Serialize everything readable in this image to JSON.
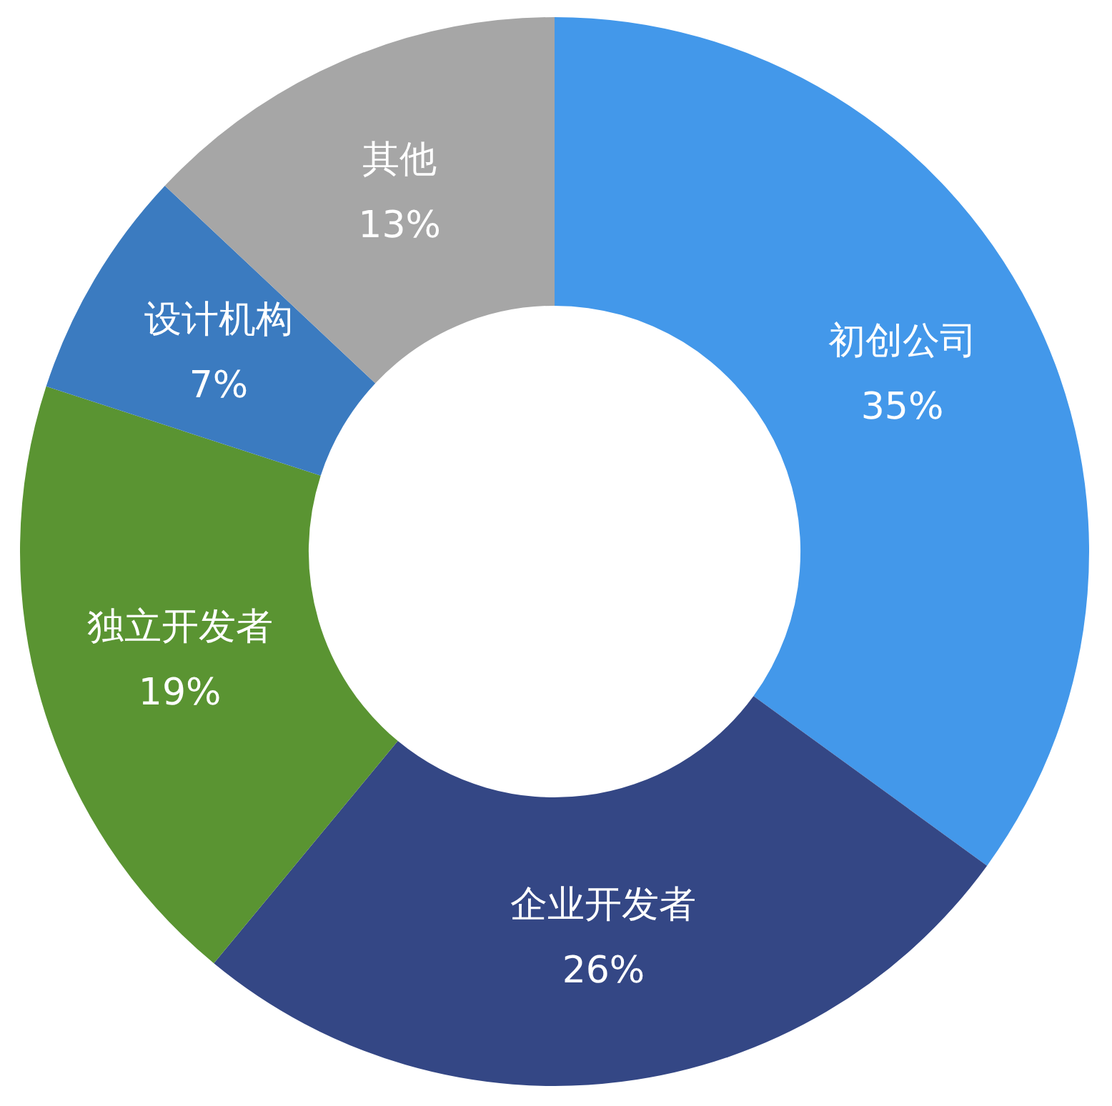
{
  "chart_data": {
    "type": "donut",
    "categories": [
      "初创公司",
      "企业开发者",
      "独立开发者",
      "设计机构",
      "其他"
    ],
    "values": [
      35,
      26,
      19,
      7,
      13
    ],
    "value_labels": [
      "35%",
      "26%",
      "19%",
      "7%",
      "13%"
    ],
    "colors": [
      "#4398ea",
      "#344785",
      "#5a9432",
      "#3b7bc0",
      "#a6a6a6"
    ],
    "legend": false
  }
}
